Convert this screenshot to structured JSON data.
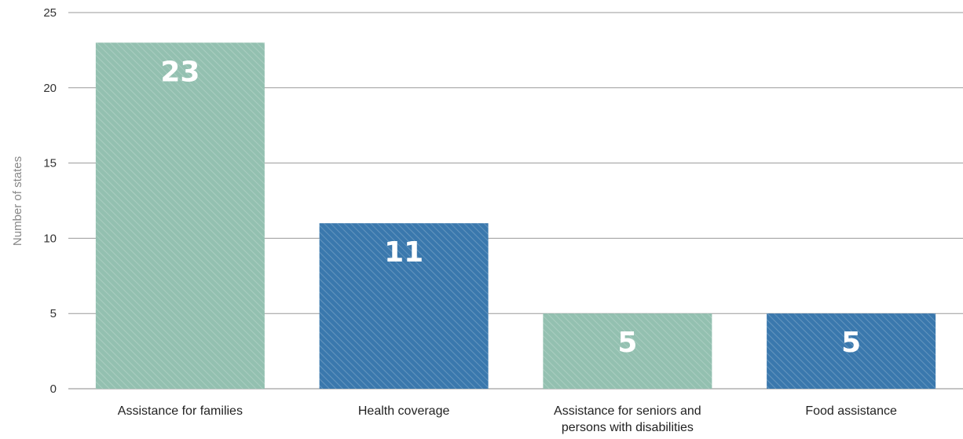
{
  "chart_data": {
    "type": "bar",
    "categories": [
      [
        "Assistance for families"
      ],
      [
        "Health coverage"
      ],
      [
        "Assistance for seniors and",
        "persons with disabilities"
      ],
      [
        "Food assistance"
      ]
    ],
    "values": [
      23,
      11,
      5,
      5
    ],
    "data_labels": [
      "23",
      "11",
      "5",
      "5"
    ],
    "bar_colors": [
      "#93c0b0",
      "#3a78ad",
      "#93c0b0",
      "#3a78ad"
    ],
    "title": "",
    "xlabel": "",
    "ylabel": "Number of states",
    "ylim": [
      0,
      25
    ],
    "yticks": [
      0,
      5,
      10,
      15,
      20,
      25
    ],
    "grid": true,
    "legend": "none"
  }
}
